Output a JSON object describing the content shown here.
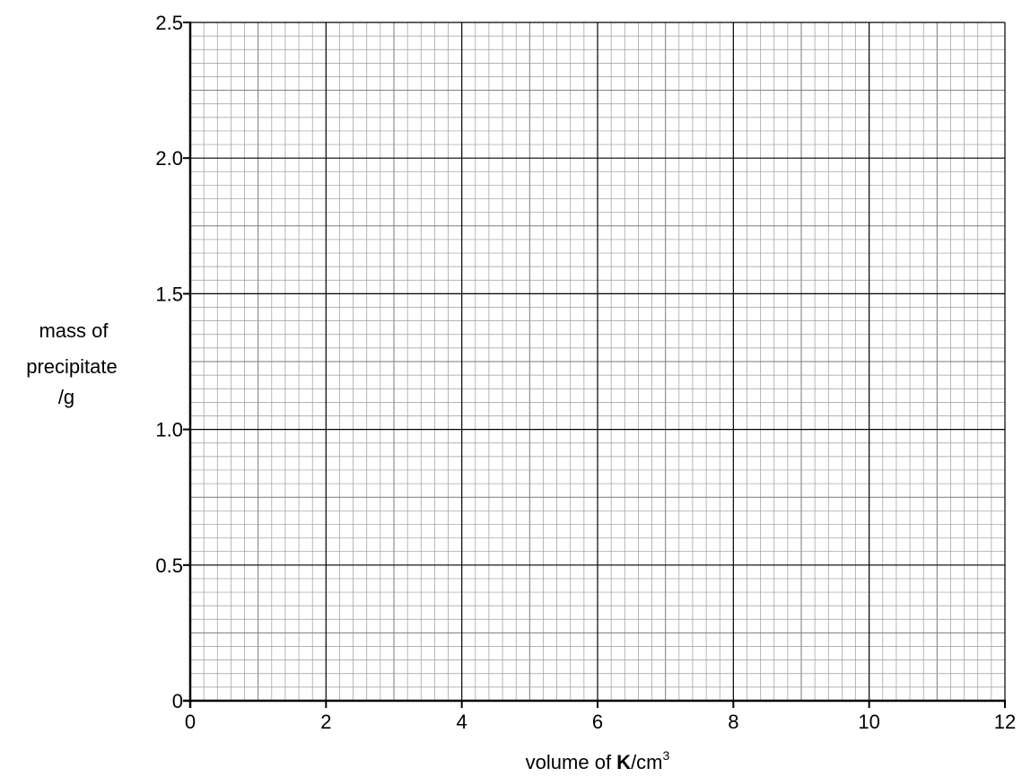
{
  "chart_data": {
    "type": "scatter",
    "title": "",
    "xlabel_parts": [
      "volume of ",
      "K",
      "/cm",
      "3"
    ],
    "ylabel_lines": [
      "mass of",
      "precipitate",
      "/g"
    ],
    "xlim": [
      0,
      12
    ],
    "ylim": [
      0,
      2.5
    ],
    "x_ticks": [
      "0",
      "2",
      "4",
      "6",
      "8",
      "10",
      "12"
    ],
    "y_ticks": [
      "0",
      "0.5",
      "1.0",
      "1.5",
      "2.0",
      "2.5"
    ],
    "grid": true,
    "grid_minor_per_major_x": 10,
    "grid_minor_per_major_y": 10,
    "series": []
  }
}
